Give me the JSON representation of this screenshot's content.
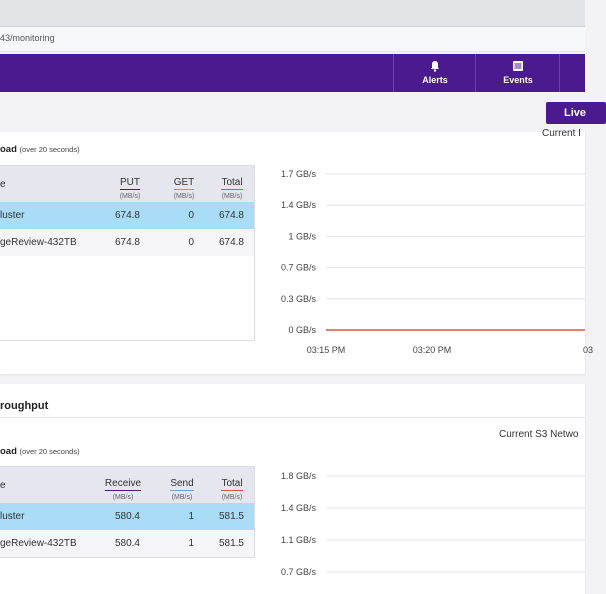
{
  "browser": {
    "url": "43/monitoring"
  },
  "nav": [
    {
      "label": "Alerts",
      "icon": "bell-icon"
    },
    {
      "label": "Events",
      "icon": "list-icon"
    }
  ],
  "live_button": "Live",
  "workload": {
    "subtitle": "oad",
    "subtitle_note": "(over 20 seconds)",
    "chart_title": "Current I",
    "table": {
      "col_name": "e",
      "col1": {
        "label": "PUT",
        "unit": "(MB/s)",
        "color": "#4b1a8e"
      },
      "col2": {
        "label": "GET",
        "unit": "(MB/s)",
        "color": "#7aa0d8"
      },
      "col3": {
        "label": "Total",
        "unit": "(MB/s)",
        "color": "#e0533e"
      },
      "rows": [
        {
          "name": "luster",
          "v1": "674.8",
          "v2": "0",
          "v3": "674.8"
        },
        {
          "name": "geReview-432TB",
          "v1": "674.8",
          "v2": "0",
          "v3": "674.8"
        }
      ]
    }
  },
  "throughput": {
    "title": "roughput",
    "subtitle": "oad",
    "subtitle_note": "(over 20 seconds)",
    "chart_title": "Current S3 Netwo",
    "table": {
      "col_name": "e",
      "col1": {
        "label": "Receive",
        "unit": "(MB/s)",
        "color": "#4b1a8e"
      },
      "col2": {
        "label": "Send",
        "unit": "(MB/s)",
        "color": "#7aa0d8"
      },
      "col3": {
        "label": "Total",
        "unit": "(MB/s)",
        "color": "#e0533e"
      },
      "rows": [
        {
          "name": "luster",
          "v1": "580.4",
          "v2": "1",
          "v3": "581.5"
        },
        {
          "name": "geReview-432TB",
          "v1": "580.4",
          "v2": "1",
          "v3": "581.5"
        }
      ]
    }
  },
  "chart_data": [
    {
      "type": "line",
      "title": "Current I",
      "y_ticks": [
        "1.7 GB/s",
        "1.4 GB/s",
        "1 GB/s",
        "0.7 GB/s",
        "0.3 GB/s",
        "0 GB/s"
      ],
      "x_ticks": [
        "03:15 PM",
        "03:20 PM",
        "03"
      ],
      "ylim": [
        0,
        1.7
      ],
      "series": [
        {
          "values": [
            0,
            0,
            0,
            0,
            0
          ],
          "color": "#e0533e"
        }
      ]
    },
    {
      "type": "line",
      "title": "Current S3 Netwo",
      "y_ticks": [
        "1.8 GB/s",
        "1.4 GB/s",
        "1.1 GB/s",
        "0.7 GB/s"
      ],
      "x_ticks": [],
      "ylim": [
        0,
        1.8
      ],
      "series": []
    }
  ]
}
